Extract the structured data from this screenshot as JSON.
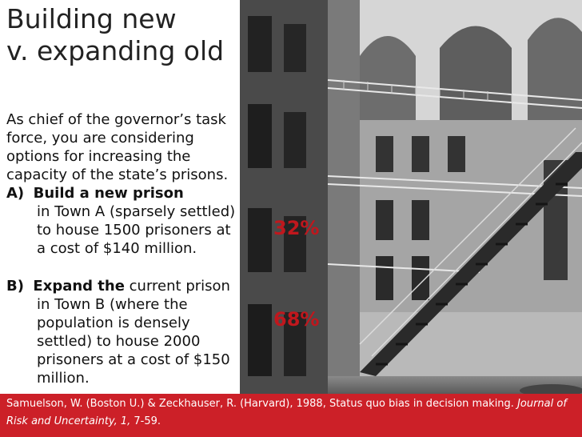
{
  "title": {
    "line1": "Building new",
    "line2": "v. expanding old"
  },
  "intro": {
    "line1": "As chief of the governor’s task",
    "line2": "force, you are considering",
    "line3": "options for increasing the",
    "line4": "capacity of the state’s prisons."
  },
  "option_a": {
    "marker": "A)",
    "bold": "Build a new prison",
    "line2": "in Town A (sparsely settled)",
    "line3": "to house 1500 prisoners at",
    "line4": "a cost of $140 million.",
    "percent": "32%"
  },
  "option_b": {
    "marker": "B)",
    "bold": "Expand the",
    "rest1": " current prison",
    "line2": "in Town B (where the",
    "line3": "population is densely",
    "line4": "settled) to house 2000",
    "line5": "prisoners at a cost of $150",
    "line6": "million.",
    "percent": "68%"
  },
  "footer": {
    "part1": "Samuelson, W. (Boston U.) & Zeckhauser, R. (Harvard), 1988, Status quo bias in decision making. ",
    "journal1": "Journal of",
    "journal2": "Risk and Uncertainty, 1,",
    "pages": " 7-59."
  },
  "colors": {
    "accent": "#cc2028",
    "percent": "#c0171d"
  }
}
